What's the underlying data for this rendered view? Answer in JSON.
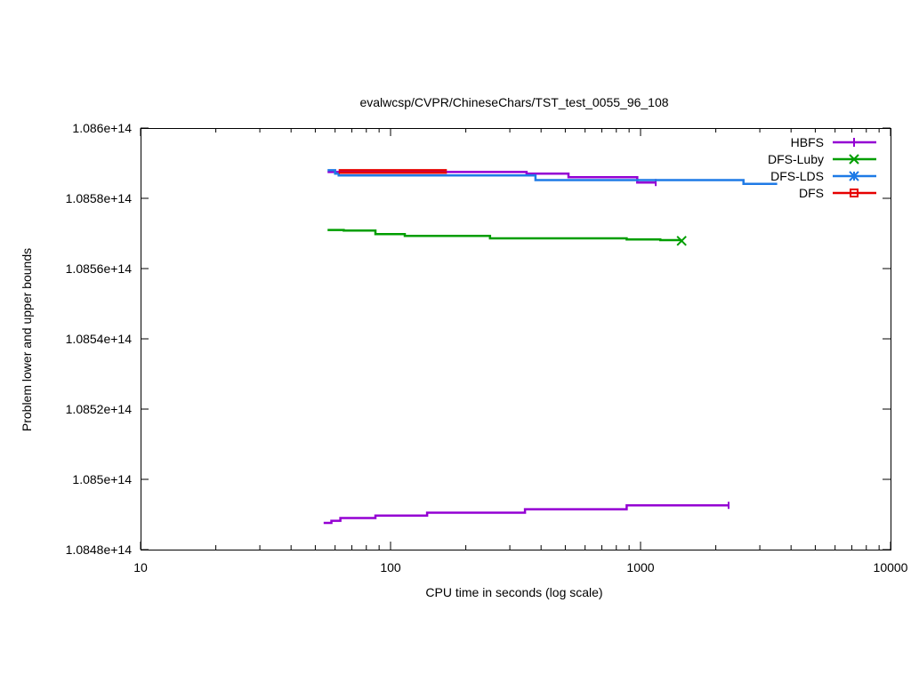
{
  "chart_data": {
    "type": "line",
    "title": "evalwcsp/CVPR/ChineseChars/TST_test_0055_96_108",
    "xlabel": "CPU time in seconds (log scale)",
    "ylabel": "Problem lower and upper bounds",
    "xscale": "log",
    "xlim": [
      10,
      10000
    ],
    "ylim": [
      108480000000000,
      108600000000000
    ],
    "grid": false,
    "legend_position": "top-right",
    "x_ticks": [
      {
        "value": 10,
        "label": "10"
      },
      {
        "value": 100,
        "label": "100"
      },
      {
        "value": 1000,
        "label": "1000"
      },
      {
        "value": 10000,
        "label": "10000"
      }
    ],
    "y_ticks": [
      {
        "value": 108480000000000,
        "label": "1.0848e+14"
      },
      {
        "value": 108500000000000,
        "label": "1.085e+14"
      },
      {
        "value": 108520000000000,
        "label": "1.0852e+14"
      },
      {
        "value": 108540000000000,
        "label": "1.0854e+14"
      },
      {
        "value": 108560000000000,
        "label": "1.0856e+14"
      },
      {
        "value": 108580000000000,
        "label": "1.0858e+14"
      },
      {
        "value": 108600000000000,
        "label": "1.086e+14"
      }
    ],
    "series": [
      {
        "name": "HBFS",
        "color": "#9400d3",
        "marker": "plus",
        "segments": [
          [
            [
              56,
              108587500000000
            ],
            [
              350,
              108587500000000
            ],
            [
              350,
              108587000000000
            ],
            [
              515,
              108587000000000
            ],
            [
              515,
              108586000000000
            ],
            [
              970,
              108586000000000
            ],
            [
              970,
              108584500000000
            ],
            [
              1150,
              108584500000000
            ]
          ],
          [
            [
              54,
              108487600000000
            ],
            [
              58,
              108487600000000
            ],
            [
              58,
              108488200000000
            ],
            [
              63,
              108488200000000
            ],
            [
              63,
              108489000000000
            ],
            [
              87,
              108489000000000
            ],
            [
              87,
              108489700000000
            ],
            [
              140,
              108489700000000
            ],
            [
              140,
              108490500000000
            ],
            [
              345,
              108490500000000
            ],
            [
              345,
              108491500000000
            ],
            [
              880,
              108491500000000
            ],
            [
              880,
              108492600000000
            ],
            [
              2250,
              108492600000000
            ]
          ]
        ],
        "end_markers": []
      },
      {
        "name": "DFS-Luby",
        "color": "#009e00",
        "marker": "x",
        "segments": [
          [
            [
              56,
              108571000000000
            ],
            [
              65,
              108571000000000
            ],
            [
              65,
              108570800000000
            ],
            [
              87,
              108570800000000
            ],
            [
              87,
              108569800000000
            ],
            [
              114,
              108569800000000
            ],
            [
              114,
              108569300000000
            ],
            [
              250,
              108569300000000
            ],
            [
              250,
              108568600000000
            ],
            [
              880,
              108568600000000
            ],
            [
              880,
              108568300000000
            ],
            [
              1200,
              108568300000000
            ],
            [
              1200,
              108568100000000
            ],
            [
              1460,
              108568100000000
            ]
          ]
        ],
        "end_markers": [
          [
            1460,
            108567900000000
          ]
        ]
      },
      {
        "name": "DFS-LDS",
        "color": "#1e7ae6",
        "marker": "star",
        "segments": [
          [
            [
              56,
              108588000000000
            ],
            [
              60,
              108588000000000
            ],
            [
              60,
              108587000000000
            ],
            [
              62,
              108587000000000
            ],
            [
              62,
              108586500000000
            ],
            [
              380,
              108586500000000
            ],
            [
              380,
              108585200000000
            ],
            [
              2580,
              108585200000000
            ],
            [
              2580,
              108584100000000
            ],
            [
              3520,
              108584100000000
            ]
          ]
        ],
        "end_markers": []
      },
      {
        "name": "DFS",
        "color": "#e60000",
        "marker": "square",
        "segments": [
          [
            [
              62,
              108588000000000
            ],
            [
              168,
              108588000000000
            ]
          ],
          [
            [
              62,
              108587300000000
            ],
            [
              168,
              108587300000000
            ]
          ]
        ],
        "end_markers": []
      }
    ]
  }
}
